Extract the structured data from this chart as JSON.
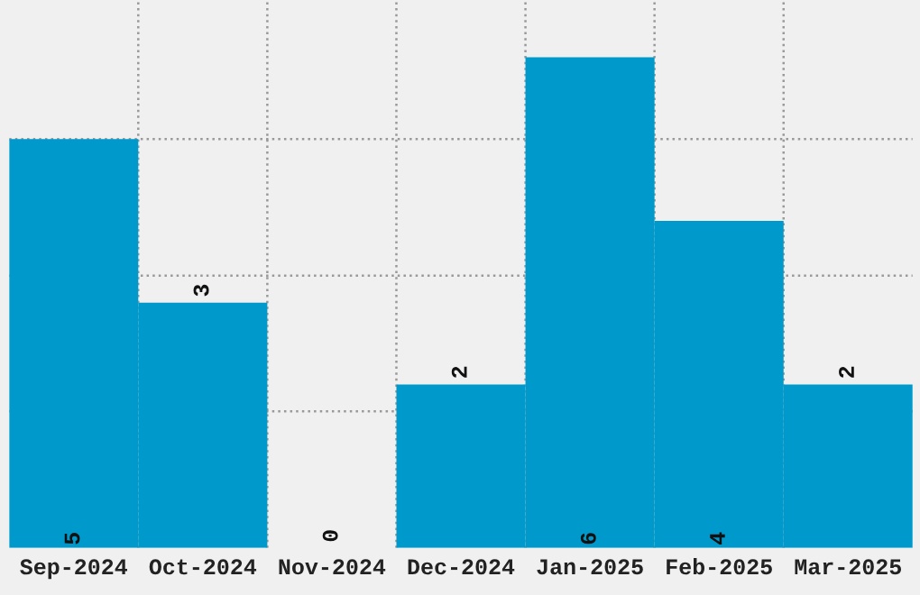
{
  "chart_data": {
    "type": "bar",
    "categories": [
      "Sep-2024",
      "Oct-2024",
      "Nov-2024",
      "Dec-2024",
      "Jan-2025",
      "Feb-2025",
      "Mar-2025"
    ],
    "values": [
      5,
      3,
      0,
      2,
      6,
      4,
      2
    ],
    "color": "#0099cc",
    "ylim": [
      0,
      6.7
    ],
    "yticks": [
      {
        "value": 1.67,
        "label": null
      },
      {
        "value": 3.33,
        "label": null
      },
      {
        "value": 5,
        "label": null
      }
    ],
    "tick_labels": "x",
    "grid": true,
    "data_labels": true
  }
}
